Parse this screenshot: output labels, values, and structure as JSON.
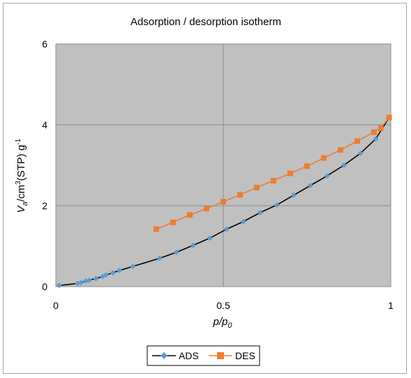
{
  "chart_data": {
    "type": "line",
    "title": "Adsorption / desorption isotherm",
    "xlabel": {
      "base": "p/p",
      "sub": "0"
    },
    "ylabel": {
      "v": "V",
      "sub": "a",
      "unit1": "/cm",
      "sup1": "3",
      "unit2": "(STP) g",
      "sup2": "-1"
    },
    "xlim": [
      0,
      1
    ],
    "ylim": [
      0,
      6
    ],
    "xticks": [
      "0",
      "0.5",
      "1"
    ],
    "xtick_values": [
      0,
      0.5,
      1
    ],
    "yticks": [
      "0",
      "2",
      "4",
      "6"
    ],
    "ytick_values": [
      0,
      2,
      4,
      6
    ],
    "grid": true,
    "plot_background": "#c0c0c0",
    "legend_position": "bottom",
    "series": [
      {
        "name": "ADS",
        "color": "#000000",
        "marker_color": "#5b9bd5",
        "marker": "diamond",
        "points": [
          [
            0.01,
            0.03
          ],
          [
            0.065,
            0.08
          ],
          [
            0.075,
            0.1
          ],
          [
            0.09,
            0.14
          ],
          [
            0.1,
            0.16
          ],
          [
            0.12,
            0.2
          ],
          [
            0.14,
            0.25
          ],
          [
            0.15,
            0.29
          ],
          [
            0.17,
            0.34
          ],
          [
            0.19,
            0.4
          ],
          [
            0.23,
            0.5
          ],
          [
            0.31,
            0.7
          ],
          [
            0.36,
            0.85
          ],
          [
            0.41,
            1.02
          ],
          [
            0.46,
            1.2
          ],
          [
            0.51,
            1.42
          ],
          [
            0.56,
            1.61
          ],
          [
            0.61,
            1.83
          ],
          [
            0.66,
            2.02
          ],
          [
            0.71,
            2.26
          ],
          [
            0.76,
            2.5
          ],
          [
            0.81,
            2.74
          ],
          [
            0.86,
            3.0
          ],
          [
            0.91,
            3.3
          ],
          [
            0.955,
            3.65
          ],
          [
            0.995,
            4.18
          ]
        ]
      },
      {
        "name": "DES",
        "color": "#ed7d31",
        "marker_color": "#ed7d31",
        "marker": "square",
        "points": [
          [
            0.995,
            4.18
          ],
          [
            0.97,
            3.92
          ],
          [
            0.95,
            3.82
          ],
          [
            0.9,
            3.6
          ],
          [
            0.85,
            3.38
          ],
          [
            0.8,
            3.18
          ],
          [
            0.75,
            2.98
          ],
          [
            0.7,
            2.8
          ],
          [
            0.65,
            2.62
          ],
          [
            0.6,
            2.45
          ],
          [
            0.55,
            2.27
          ],
          [
            0.5,
            2.1
          ],
          [
            0.45,
            1.93
          ],
          [
            0.4,
            1.77
          ],
          [
            0.35,
            1.59
          ],
          [
            0.3,
            1.42
          ]
        ]
      }
    ]
  }
}
